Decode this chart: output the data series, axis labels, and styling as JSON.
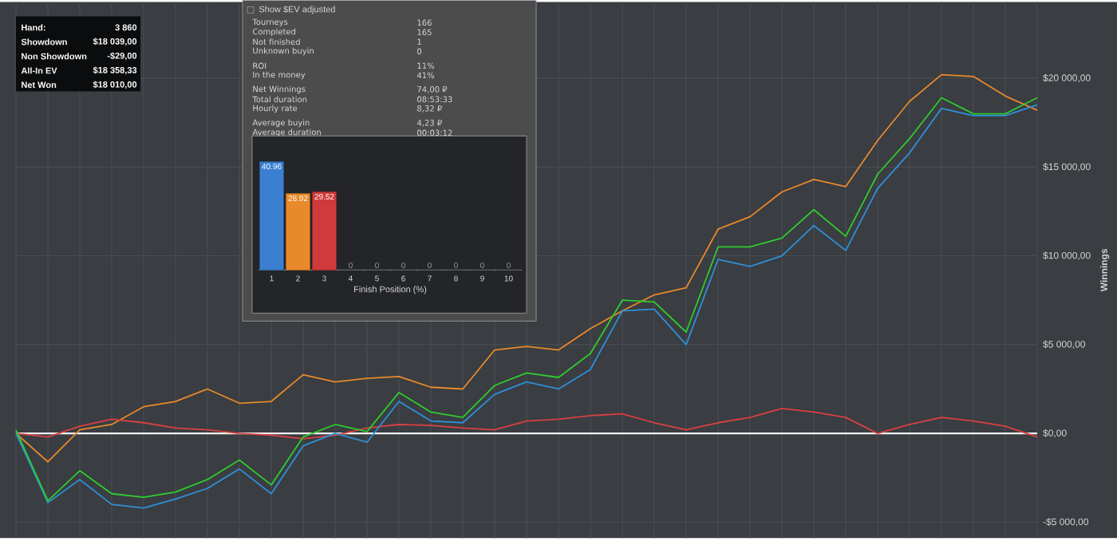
{
  "chart_data": [
    {
      "type": "line",
      "categories": [
        null,
        null,
        null,
        null,
        null,
        null,
        null,
        null,
        null,
        null,
        null,
        null,
        null,
        null,
        null,
        null,
        null,
        null,
        null,
        null,
        null,
        null,
        null,
        null,
        null,
        null,
        null,
        null,
        null,
        null,
        null,
        null,
        null
      ],
      "series": [
        {
          "color": "#e8892b",
          "values": [
            0,
            -1600,
            200,
            500,
            1500,
            1800,
            2500,
            1700,
            1800,
            3300,
            2900,
            3100,
            3200,
            2600,
            2500,
            4700,
            4900,
            4700,
            5900,
            6900,
            7800,
            8200,
            11500,
            12200,
            13600,
            14300,
            13900,
            16500,
            18700,
            20200,
            20100,
            19000,
            18200
          ]
        },
        {
          "color": "#d94040",
          "values": [
            0,
            -200,
            400,
            800,
            600,
            300,
            200,
            0,
            -100,
            -300,
            -100,
            300,
            500,
            450,
            300,
            200,
            700,
            800,
            1000,
            1100,
            600,
            200,
            600,
            900,
            1400,
            1200,
            900,
            0,
            500,
            900,
            700,
            400,
            -200
          ]
        },
        {
          "color": "#2f8fd6",
          "values": [
            0,
            -3900,
            -2600,
            -4000,
            -4200,
            -3700,
            -3100,
            -2000,
            -3400,
            -700,
            0,
            -500,
            1800,
            700,
            600,
            2200,
            2900,
            2500,
            3600,
            6900,
            7000,
            5000,
            9800,
            9400,
            10000,
            11700,
            10300,
            13800,
            15800,
            18300,
            17900,
            17900,
            18500
          ]
        },
        {
          "color": "#2ecc2e",
          "values": [
            180,
            -3800,
            -2100,
            -3400,
            -3600,
            -3300,
            -2600,
            -1500,
            -2900,
            -200,
            500,
            100,
            2300,
            1200,
            900,
            2700,
            3400,
            3150,
            4500,
            7500,
            7400,
            5700,
            10500,
            10500,
            11000,
            12600,
            11100,
            14600,
            16600,
            18900,
            18000,
            18000,
            18900
          ]
        }
      ],
      "ylim": [
        -5900,
        24300
      ],
      "yticks": [
        {
          "value": -5000,
          "label": "-$5 000,00"
        },
        {
          "value": 0,
          "label": "$0,00"
        },
        {
          "value": 5000,
          "label": "$5 000,00"
        },
        {
          "value": 10000,
          "label": "$10 000,00"
        },
        {
          "value": 15000,
          "label": "$15 000,00"
        },
        {
          "value": 20000,
          "label": "$20 000,00"
        }
      ],
      "ylabel": "Winnings",
      "grid": true,
      "tick_labels": "y",
      "ref_lines": [
        {
          "axis": "y",
          "value": 0,
          "color": "#f0f0f0"
        }
      ]
    },
    {
      "type": "other",
      "annotations": [
        "Hand:",
        "3 860",
        "Showdown",
        "$18 039,00",
        "Non Showdown",
        "-$29,00",
        "All-In EV",
        "$18 358,33",
        "Net Won",
        "$18 010,00"
      ]
    },
    {
      "type": "other",
      "title": "Show $EV adjusted",
      "annotations": [
        "Tourneys",
        "166",
        "Completed",
        "165",
        "Not finished",
        "1",
        "Unknown buyin",
        "0",
        "ROI",
        "11%",
        "In the money",
        "41%",
        "Net Winnings",
        "74,00 ₽",
        "Total duration",
        "08:53:33",
        "Hourly rate",
        "8,32 ₽",
        "Average buyin",
        "4,23 ₽",
        "Average duration",
        "00:03:12"
      ]
    },
    {
      "type": "bar",
      "categories": [
        "1",
        "2",
        "3",
        "4",
        "5",
        "6",
        "7",
        "8",
        "9",
        "10"
      ],
      "values": [
        40.96,
        28.92,
        29.52,
        0,
        0,
        0,
        0,
        0,
        0,
        0
      ],
      "colors": [
        "#3a7fd0",
        "#e8892b",
        "#d03a3a",
        "#888888",
        "#888888",
        "#888888",
        "#888888",
        "#888888",
        "#888888",
        "#888888"
      ],
      "xlabel": "Finish Position (%)",
      "data_labels": true
    }
  ]
}
